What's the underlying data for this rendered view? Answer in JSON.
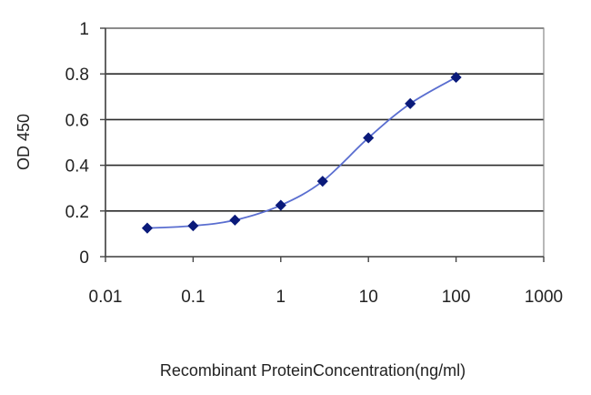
{
  "chart_data": {
    "type": "line",
    "title": "",
    "xlabel": "Recombinant ProteinConcentration(ng/ml)",
    "ylabel": "OD 450",
    "x_scale": "log",
    "xlim": [
      0.01,
      1000
    ],
    "ylim": [
      0,
      1
    ],
    "x_ticks": [
      0.01,
      0.1,
      1,
      10,
      100,
      1000
    ],
    "x_tick_labels": [
      "0.01",
      "0.1",
      "1",
      "10",
      "100",
      "1000"
    ],
    "y_ticks": [
      0,
      0.2,
      0.4,
      0.6,
      0.8,
      1
    ],
    "y_tick_labels": [
      "0",
      "0.2",
      "0.4",
      "0.6",
      "0.8",
      "1"
    ],
    "grid": "horizontal",
    "legend": "none",
    "series": [
      {
        "x": [
          0.03,
          0.1,
          0.3,
          1,
          3,
          10,
          30,
          100
        ],
        "y": [
          0.125,
          0.135,
          0.16,
          0.225,
          0.33,
          0.52,
          0.67,
          0.785
        ],
        "color": "#1f2f9a"
      }
    ],
    "colors": {
      "line": "#5a6ed0",
      "marker": "#0a1a7a",
      "grid": "#2a2a2a",
      "plot_border": "#888888"
    }
  }
}
